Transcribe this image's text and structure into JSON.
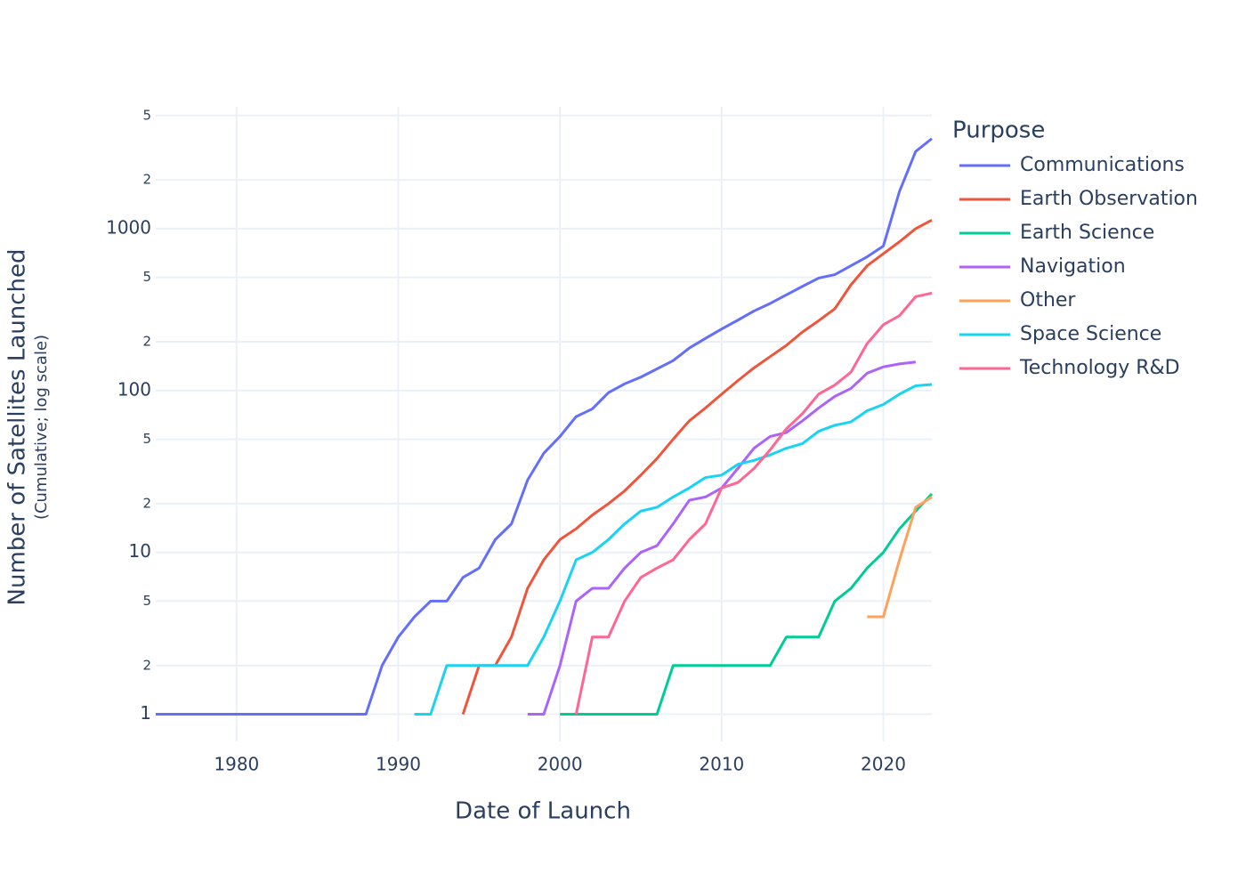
{
  "chart_data": {
    "type": "line",
    "x_label": "Date of Launch",
    "y_label": "Number of Satellites Launched",
    "y_sublabel": "(Cumulative; log scale)",
    "legend_title": "Purpose",
    "log_y": true,
    "grid": true,
    "legend_position": "right",
    "xlim": [
      1975,
      2023
    ],
    "xticks": [
      1980,
      1990,
      2000,
      2010,
      2020
    ],
    "ylim": [
      0.68,
      5660
    ],
    "yticks": [
      1,
      2,
      5,
      10,
      {
        "value": 20,
        "label": "2"
      },
      {
        "value": 50,
        "label": "5"
      },
      100,
      {
        "value": 200,
        "label": "2"
      },
      {
        "value": 500,
        "label": "5"
      },
      1000,
      {
        "value": 2000,
        "label": "2"
      },
      {
        "value": 5000,
        "label": "5"
      }
    ],
    "x": [
      1975,
      1976,
      1977,
      1978,
      1979,
      1980,
      1981,
      1982,
      1983,
      1984,
      1985,
      1986,
      1987,
      1988,
      1989,
      1990,
      1991,
      1992,
      1993,
      1994,
      1995,
      1996,
      1997,
      1998,
      1999,
      2000,
      2001,
      2002,
      2003,
      2004,
      2005,
      2006,
      2007,
      2008,
      2009,
      2010,
      2011,
      2012,
      2013,
      2014,
      2015,
      2016,
      2017,
      2018,
      2019,
      2020,
      2021,
      2022,
      2023
    ],
    "series": [
      {
        "name": "Communications",
        "color": "#636efa",
        "values": [
          1,
          1,
          1,
          1,
          1,
          1,
          1,
          1,
          1,
          1,
          1,
          1,
          1,
          1,
          2,
          3,
          4,
          5,
          5,
          7,
          8,
          12,
          15,
          28,
          41,
          52,
          69,
          77,
          97,
          110,
          121,
          136,
          153,
          183,
          210,
          240,
          272,
          310,
          345,
          390,
          440,
          495,
          520,
          590,
          670,
          780,
          1700,
          3000,
          3600
        ]
      },
      {
        "name": "Earth Observation",
        "color": "#EF553B",
        "values": [
          null,
          null,
          null,
          null,
          null,
          null,
          null,
          null,
          null,
          null,
          null,
          null,
          null,
          null,
          null,
          null,
          null,
          null,
          null,
          1,
          2,
          2,
          3,
          6,
          9,
          12,
          14,
          17,
          20,
          24,
          30,
          38,
          50,
          65,
          78,
          95,
          115,
          138,
          162,
          190,
          230,
          270,
          320,
          450,
          590,
          700,
          830,
          1000,
          1130
        ]
      },
      {
        "name": "Earth Science",
        "color": "#00cc96",
        "values": [
          null,
          null,
          null,
          null,
          null,
          null,
          null,
          null,
          null,
          null,
          null,
          null,
          null,
          null,
          null,
          null,
          null,
          null,
          null,
          null,
          null,
          null,
          null,
          null,
          null,
          1,
          1,
          1,
          1,
          1,
          1,
          1,
          2,
          2,
          2,
          2,
          2,
          2,
          2,
          3,
          3,
          3,
          5,
          6,
          8,
          10,
          14,
          18,
          23
        ]
      },
      {
        "name": "Navigation",
        "color": "#ab63fa",
        "values": [
          null,
          null,
          null,
          null,
          null,
          null,
          null,
          null,
          null,
          null,
          null,
          null,
          null,
          null,
          null,
          null,
          null,
          null,
          null,
          null,
          null,
          null,
          null,
          1,
          1,
          2,
          5,
          6,
          6,
          8,
          10,
          11,
          15,
          21,
          22,
          25,
          33,
          44,
          52,
          55,
          65,
          78,
          92,
          103,
          128,
          140,
          146,
          150,
          null
        ]
      },
      {
        "name": "Other",
        "color": "#FFA15A",
        "values": [
          null,
          null,
          null,
          null,
          null,
          null,
          null,
          null,
          null,
          null,
          null,
          null,
          null,
          null,
          null,
          null,
          null,
          null,
          null,
          null,
          null,
          null,
          null,
          null,
          null,
          null,
          null,
          null,
          null,
          null,
          null,
          null,
          null,
          null,
          null,
          null,
          null,
          null,
          null,
          null,
          null,
          null,
          null,
          null,
          4,
          4,
          9,
          19,
          22
        ]
      },
      {
        "name": "Space Science",
        "color": "#19d3f3",
        "values": [
          null,
          null,
          null,
          null,
          null,
          null,
          null,
          null,
          null,
          null,
          null,
          null,
          null,
          null,
          null,
          null,
          1,
          1,
          2,
          2,
          2,
          2,
          2,
          2,
          3,
          5,
          9,
          10,
          12,
          15,
          18,
          19,
          22,
          25,
          29,
          30,
          35,
          37,
          40,
          44,
          47,
          56,
          61,
          64,
          75,
          82,
          95,
          107,
          109
        ]
      },
      {
        "name": "Technology R&D",
        "color": "#FF6692",
        "values": [
          null,
          null,
          null,
          null,
          null,
          null,
          null,
          null,
          null,
          null,
          null,
          null,
          null,
          null,
          null,
          null,
          null,
          null,
          null,
          null,
          null,
          null,
          null,
          null,
          null,
          null,
          1,
          3,
          3,
          5,
          7,
          8,
          9,
          12,
          15,
          25,
          27,
          33,
          43,
          58,
          72,
          95,
          108,
          130,
          195,
          255,
          290,
          380,
          400
        ]
      }
    ]
  }
}
